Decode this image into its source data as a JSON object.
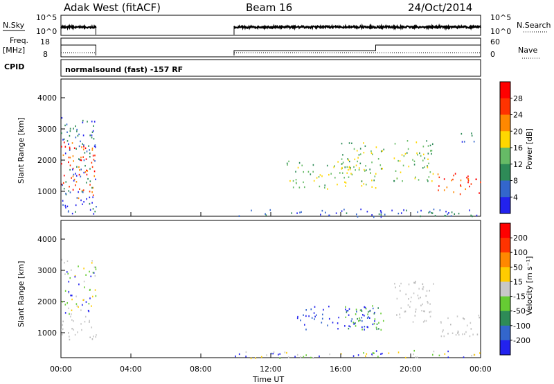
{
  "header": {
    "station": "Adak West (fitACF)",
    "beam": "Beam 16",
    "date": "24/Oct/2014"
  },
  "panels": {
    "nsky": {
      "left_label": "N.Sky",
      "right_label": "N.Search",
      "left_ticks": [
        "10^5",
        "10^0"
      ],
      "right_ticks": [
        "10^5",
        "10^0"
      ]
    },
    "freq": {
      "left_label_1": "Freq.",
      "left_label_2": "[MHz]",
      "right_label": "Nave",
      "left_ticks": [
        "18",
        "8"
      ],
      "right_ticks": [
        "60",
        "0"
      ]
    },
    "cpid": {
      "left_label": "CPID",
      "program": "normalsound (fast) -157 RF"
    }
  },
  "colors": {
    "scatter_blue": "#1f4fbf",
    "ground_gray": "#c8c8c8",
    "grid_line": "#cccccc"
  },
  "chart_data": [
    {
      "type": "heatmap",
      "name": "power",
      "ylabel": "Slant Range [km]",
      "y_ticks": [
        "1000",
        "2000",
        "3000",
        "4000"
      ],
      "ylim": [
        200,
        4600
      ],
      "xlim": [
        0,
        24
      ],
      "colorbar": {
        "label": "Power [dB]",
        "ticks": [
          "4",
          "8",
          "12",
          "16",
          "20",
          "24",
          "28"
        ],
        "colors": [
          "#2222ee",
          "#3366cc",
          "#2e8b57",
          "#66bb66",
          "#ffd700",
          "#ff8800",
          "#ff3300",
          "#ff0000"
        ]
      },
      "regions": [
        {
          "t0": 0.0,
          "t1": 2.0,
          "r0": 800,
          "r1": 2600,
          "level": "high"
        },
        {
          "t0": 0.0,
          "t1": 2.0,
          "r0": 300,
          "r1": 3400,
          "level": "low"
        },
        {
          "t0": 12.8,
          "t1": 18.0,
          "r0": 1100,
          "r1": 2000,
          "level": "medium"
        },
        {
          "t0": 16.0,
          "t1": 18.5,
          "r0": 1700,
          "r1": 2600,
          "level": "medium"
        },
        {
          "t0": 19.0,
          "t1": 21.3,
          "r0": 1300,
          "r1": 2700,
          "level": "medium"
        },
        {
          "t0": 21.5,
          "t1": 24.0,
          "r0": 900,
          "r1": 1600,
          "level": "high"
        },
        {
          "t0": 22.8,
          "t1": 24.0,
          "r0": 2600,
          "r1": 2900,
          "level": "low"
        },
        {
          "t0": 9.9,
          "t1": 24.0,
          "r0": 200,
          "r1": 450,
          "level": "low"
        }
      ]
    },
    {
      "type": "heatmap",
      "name": "velocity",
      "ylabel": "Slant Range [km]",
      "y_ticks": [
        "1000",
        "2000",
        "3000",
        "4000"
      ],
      "ylim": [
        200,
        4600
      ],
      "xlim": [
        0,
        24
      ],
      "x_ticks": [
        "00:00",
        "04:00",
        "08:00",
        "12:00",
        "16:00",
        "20:00",
        "00:00"
      ],
      "xlabel": "Time UT",
      "colorbar": {
        "label": "Velocity [m s⁻¹]",
        "ticks": [
          "200",
          "100",
          "50",
          "15",
          "-15",
          "-50",
          "-100",
          "-200"
        ],
        "colors": [
          "#2222ee",
          "#3366cc",
          "#2e8b57",
          "#66cc33",
          "#c8c8c8",
          "#ffcc00",
          "#ff8800",
          "#ff3300",
          "#ff0000"
        ]
      },
      "regions": [
        {
          "t0": 0.0,
          "t1": 2.0,
          "r0": 800,
          "r1": 1600,
          "level": "ground"
        },
        {
          "t0": 0.0,
          "t1": 2.0,
          "r0": 1600,
          "r1": 3400,
          "level": "mixed"
        },
        {
          "t0": 13.5,
          "t1": 18.0,
          "r0": 1100,
          "r1": 1900,
          "level": "toward"
        },
        {
          "t0": 16.0,
          "t1": 18.5,
          "r0": 1100,
          "r1": 1900,
          "level": "slow"
        },
        {
          "t0": 19.0,
          "t1": 21.3,
          "r0": 1300,
          "r1": 2700,
          "level": "ground"
        },
        {
          "t0": 21.5,
          "t1": 24.0,
          "r0": 900,
          "r1": 1600,
          "level": "ground"
        },
        {
          "t0": 9.9,
          "t1": 24.0,
          "r0": 200,
          "r1": 450,
          "level": "mixed"
        }
      ]
    }
  ]
}
